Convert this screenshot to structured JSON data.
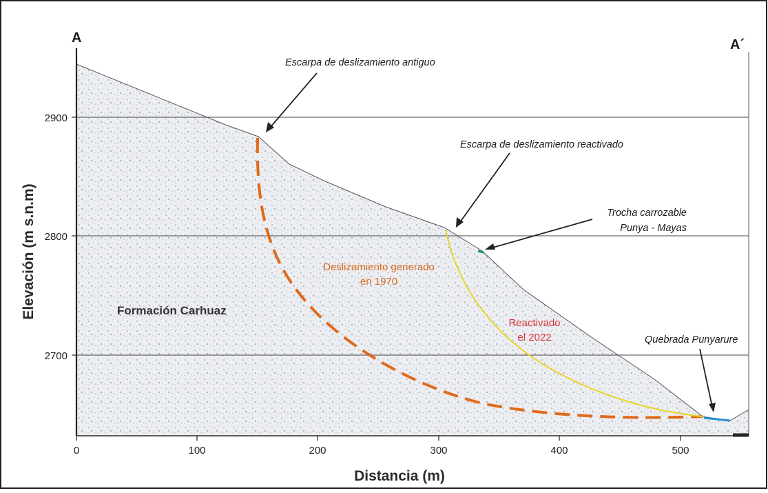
{
  "section": {
    "start_label": "A",
    "end_label": "A´"
  },
  "axes": {
    "x_title": "Distancia (m)",
    "y_title": "Elevación (m s.n.m)",
    "x_ticks": [
      "0",
      "100",
      "200",
      "300",
      "400",
      "500"
    ],
    "y_ticks": [
      "2900",
      "2800",
      "2700"
    ]
  },
  "labels": {
    "formation": "Formación Carhuaz",
    "slide_1970_line1": "Deslizamiento generado",
    "slide_1970_line2": "en 1970",
    "reactivated_line1": "Reactivado",
    "reactivated_line2": "el 2022"
  },
  "annotations": {
    "old_scarp": "Escarpa de deslizamiento antiguo",
    "reactivated_scarp": "Escarpa de deslizamiento reactivado",
    "road_line1": "Trocha carrozable",
    "road_line2": "Punya - Mayas",
    "creek": "Quebrada Punyarure"
  },
  "colors": {
    "slide_1970": "#e06a1b",
    "reactivated_2022": "#e8d52a",
    "road": "#1a9a5a",
    "creek": "#2a8fd6",
    "terrain_fill": "#e9ebef"
  }
}
